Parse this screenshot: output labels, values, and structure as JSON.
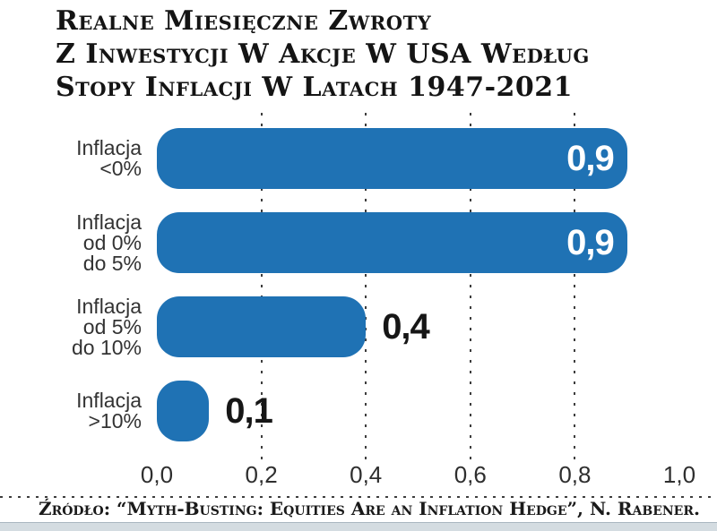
{
  "title": {
    "lines": [
      "Realne Miesięczne Zwroty",
      "Z Inwestycji W Akcje W USA Według",
      "Stopy Inflacji W Latach 1947-2021"
    ]
  },
  "chart_data": {
    "type": "bar",
    "orientation": "horizontal",
    "title": "Realne miesięczne zwroty z inwestycji w akcje w USA według stopy inflacji w latach 1947-2021",
    "categories": [
      {
        "lines": [
          "Inflacja",
          "<0%"
        ]
      },
      {
        "lines": [
          "Inflacja",
          "od 0%",
          "do 5%"
        ]
      },
      {
        "lines": [
          "Inflacja",
          "od 5%",
          "do 10%"
        ]
      },
      {
        "lines": [
          "Inflacja",
          ">10%"
        ]
      }
    ],
    "values": [
      0.9,
      0.9,
      0.4,
      0.1
    ],
    "value_labels": [
      "0,9",
      "0,9",
      "0,4",
      "0,1"
    ],
    "value_label_inside": [
      true,
      true,
      false,
      false
    ],
    "x_ticks": [
      {
        "label": "0,0",
        "value": 0.0
      },
      {
        "label": "0,2",
        "value": 0.2
      },
      {
        "label": "0,4",
        "value": 0.4
      },
      {
        "label": "0,6",
        "value": 0.6
      },
      {
        "label": "0,8",
        "value": 0.8
      },
      {
        "label": "1,0",
        "value": 1.0
      }
    ],
    "xlim": [
      0,
      1
    ],
    "gridlines_at": [
      0.2,
      0.4,
      0.6,
      0.8
    ],
    "grid_style": "dashed-vertical",
    "legend": "none",
    "bar_color": "#1f72b4",
    "value_color_inside": "#ffffff",
    "value_color_outside": "#161616"
  },
  "source": {
    "text": "Źródło: “Myth-Busting: Equities Are an Inflation Hedge”, N. Rabener."
  }
}
